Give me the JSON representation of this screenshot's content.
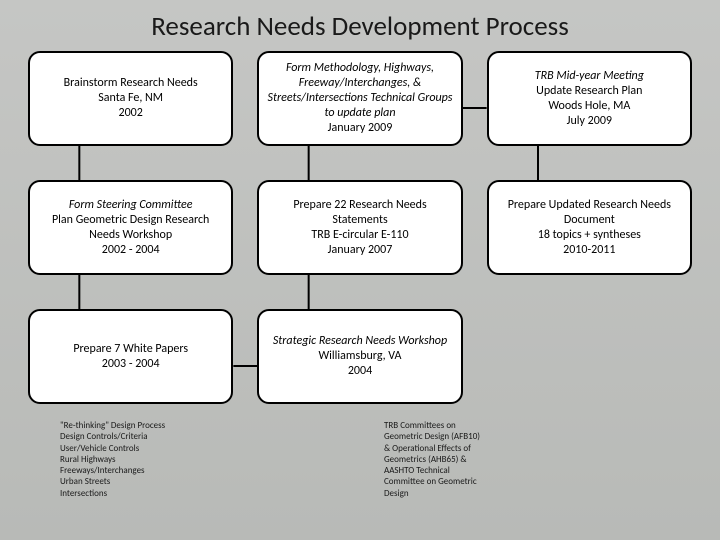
{
  "title": "Research Needs Development Process",
  "background_gradient": [
    "#c5c6c4",
    "#b8bab7"
  ],
  "box_style": {
    "fill": "#ffffff",
    "border": "#000000",
    "border_width": 2,
    "border_radius": 12,
    "font_size": 12
  },
  "title_fontsize": 27,
  "connector_color": "#000000",
  "grid": {
    "cols": 3,
    "rows": 3,
    "col_gap": 24,
    "row_gap": 34
  },
  "boxes": [
    {
      "id": "b0",
      "row": 0,
      "col": 0,
      "lines": [
        {
          "t": "Brainstorm Research Needs",
          "em": false
        },
        {
          "t": "Santa Fe, NM",
          "em": false
        },
        {
          "t": "2002",
          "em": false
        }
      ]
    },
    {
      "id": "b1",
      "row": 0,
      "col": 1,
      "lines": [
        {
          "t": "Form Methodology, Highways, Freeway/Interchanges, & Streets/Intersections Technical Groups to update plan",
          "em": true
        },
        {
          "t": "January 2009",
          "em": false
        }
      ]
    },
    {
      "id": "b2",
      "row": 0,
      "col": 2,
      "lines": [
        {
          "t": "TRB Mid-year Meeting",
          "em": true
        },
        {
          "t": "Update Research Plan",
          "em": false
        },
        {
          "t": "Woods Hole, MA",
          "em": false
        },
        {
          "t": "July 2009",
          "em": false
        }
      ]
    },
    {
      "id": "b3",
      "row": 1,
      "col": 0,
      "lines": [
        {
          "t": "Form Steering Committee",
          "em": true
        },
        {
          "t": "Plan Geometric Design Research Needs Workshop",
          "em": false
        },
        {
          "t": "2002 - 2004",
          "em": false
        }
      ]
    },
    {
      "id": "b4",
      "row": 1,
      "col": 1,
      "lines": [
        {
          "t": "Prepare 22 Research Needs Statements",
          "em": false
        },
        {
          "t": "TRB E-circular E-110",
          "em": false
        },
        {
          "t": "January 2007",
          "em": false
        }
      ]
    },
    {
      "id": "b5",
      "row": 1,
      "col": 2,
      "lines": [
        {
          "t": "Prepare Updated Research Needs Document",
          "em": false
        },
        {
          "t": "18 topics + syntheses",
          "em": false
        },
        {
          "t": "2010-2011",
          "em": false
        }
      ]
    },
    {
      "id": "b6",
      "row": 2,
      "col": 0,
      "lines": [
        {
          "t": "Prepare 7 White Papers",
          "em": false
        },
        {
          "t": "2003 - 2004",
          "em": false
        }
      ]
    },
    {
      "id": "b7",
      "row": 2,
      "col": 1,
      "lines": [
        {
          "t": "Strategic Research Needs Workshop",
          "em": true
        },
        {
          "t": "Williamsburg, VA",
          "em": false
        },
        {
          "t": "2004",
          "em": false
        }
      ]
    }
  ],
  "connectors": [
    {
      "from": "b0",
      "to": "b3",
      "type": "v"
    },
    {
      "from": "b3",
      "to": "b6",
      "type": "v"
    },
    {
      "from": "b6",
      "to": "b7",
      "type": "h"
    },
    {
      "from": "b7",
      "to": "b4",
      "type": "v"
    },
    {
      "from": "b4",
      "to": "b1",
      "type": "v"
    },
    {
      "from": "b1",
      "to": "b2",
      "type": "h"
    },
    {
      "from": "b2",
      "to": "b5",
      "type": "v"
    }
  ],
  "footer": {
    "font_size": 9,
    "left": [
      "\"Re-thinking\" Design Process",
      "Design Controls/Criteria",
      "User/Vehicle Controls",
      "Rural Highways",
      "Freeways/Interchanges",
      "Urban Streets",
      "Intersections"
    ],
    "right": [
      "TRB Committees on",
      "Geometric Design (AFB10)",
      "& Operational Effects of",
      "Geometrics (AHB65) &",
      "AASHTO Technical",
      "Committee on Geometric",
      "Design"
    ]
  }
}
